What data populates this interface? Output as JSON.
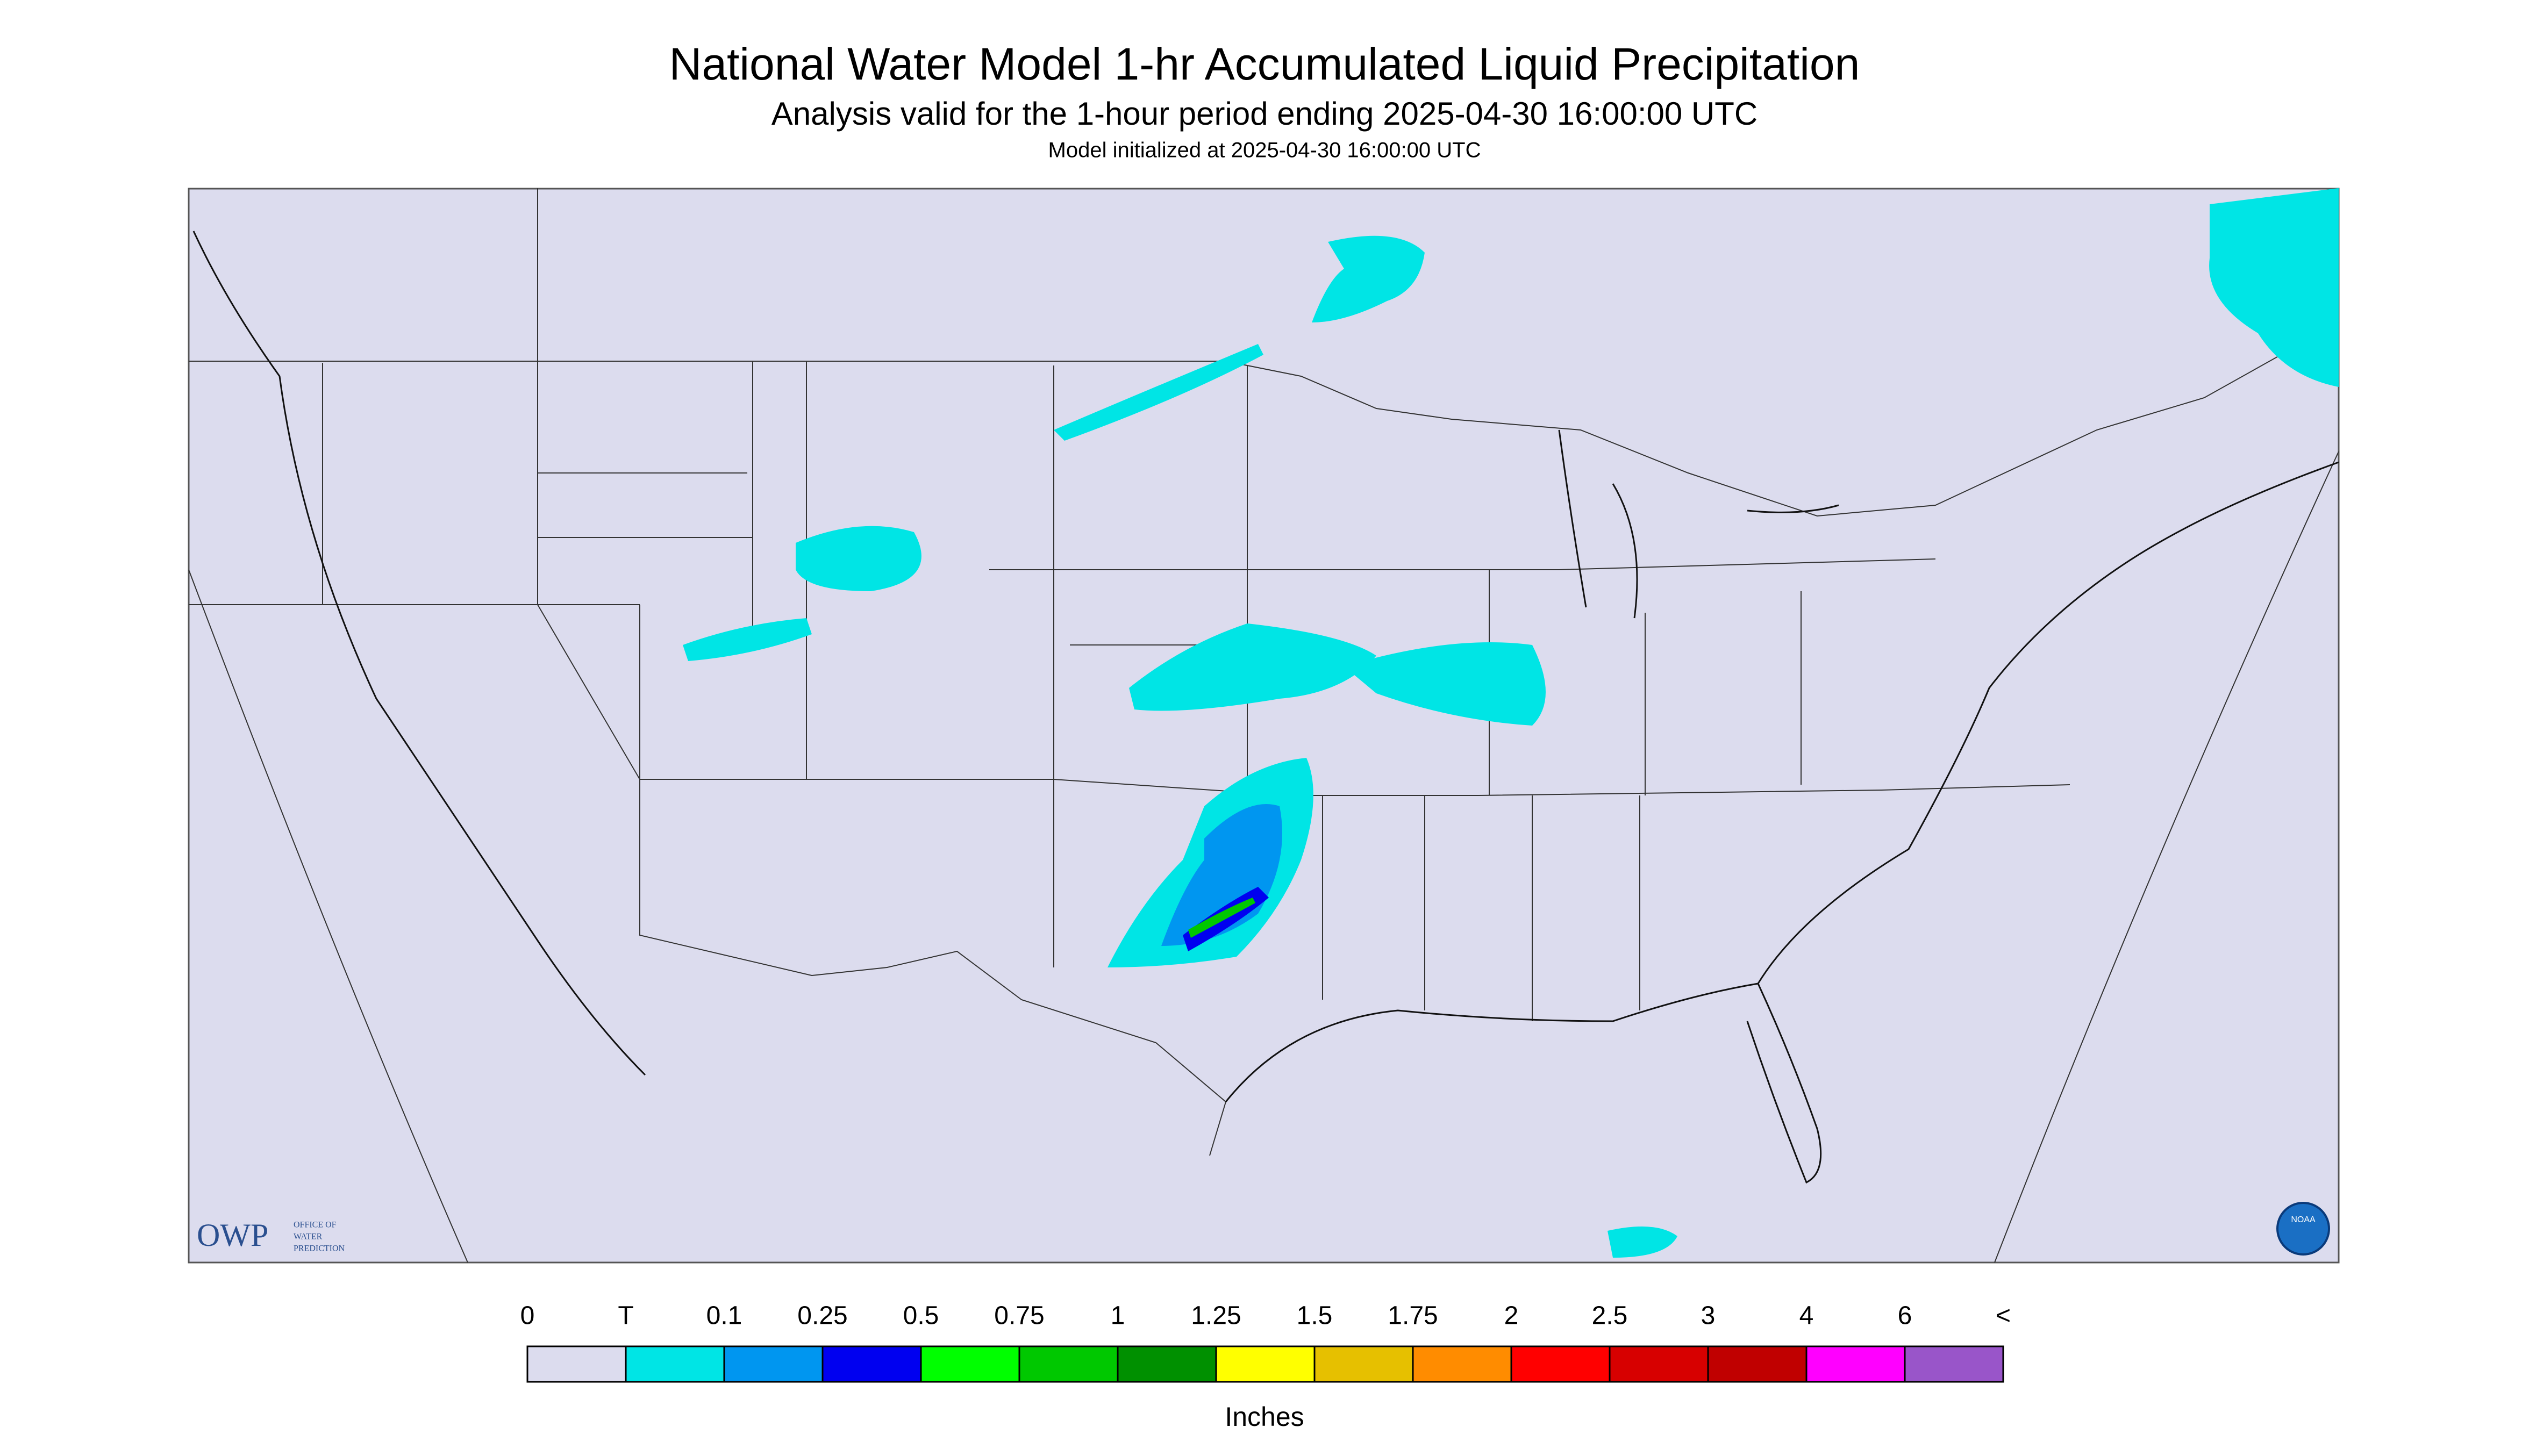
{
  "header": {
    "title": "National Water Model 1-hr Accumulated Liquid Precipitation",
    "subtitle": "Analysis valid for the 1-hour period ending 2025-04-30 16:00:00 UTC",
    "initialized": "Model initialized at 2025-04-30 16:00:00 UTC"
  },
  "logos": {
    "owp": "OWP",
    "owp_full": [
      "OFFICE OF",
      "WATER",
      "PREDICTION"
    ],
    "noaa": "NOAA"
  },
  "legend": {
    "labels": [
      "0",
      "T",
      "0.1",
      "0.25",
      "0.5",
      "0.75",
      "1",
      "1.25",
      "1.5",
      "1.75",
      "2",
      "2.5",
      "3",
      "4",
      "6",
      "<"
    ],
    "colors": [
      "#dcdcee",
      "#00e5e5",
      "#0096f0",
      "#0000f0",
      "#00ff00",
      "#00c800",
      "#009000",
      "#ffff00",
      "#e6c000",
      "#ff8c00",
      "#ff0000",
      "#d70000",
      "#c00000",
      "#ff00ff",
      "#9955c9"
    ],
    "units": "Inches"
  }
}
